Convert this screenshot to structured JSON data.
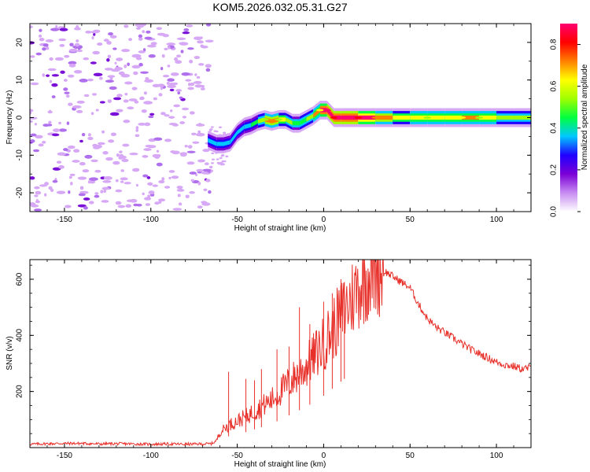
{
  "title": "KOM5.2026.032.05.31.G27",
  "chart_data": [
    {
      "type": "heatmap",
      "name": "spectrogram",
      "xlabel": "Height of straight line (km)",
      "ylabel": "Frequency (Hz)",
      "xlim": [
        -170,
        120
      ],
      "ylim": [
        -25,
        25
      ],
      "xticks": [
        -150,
        -100,
        -50,
        0,
        50,
        100
      ],
      "yticks": [
        -20,
        -10,
        0,
        10,
        20
      ],
      "noise_region_x": [
        -170,
        -65
      ],
      "signal_track": {
        "x": [
          -67,
          -62,
          -58,
          -54,
          -50,
          -46,
          -42,
          -38,
          -34,
          -30,
          -26,
          -22,
          -18,
          -14,
          -10,
          -6,
          -2,
          2,
          6,
          10,
          20,
          30,
          40,
          50,
          60,
          70,
          80,
          90,
          100,
          110,
          120
        ],
        "freq": [
          -6,
          -7,
          -7,
          -6.5,
          -4,
          -2.5,
          -2,
          -1,
          -0.5,
          -1,
          -0.5,
          -0.5,
          -1.5,
          -1.5,
          -0.5,
          0.5,
          2,
          2,
          0,
          0,
          0,
          0,
          0,
          0,
          0,
          0,
          0,
          0,
          0,
          0,
          0
        ],
        "amplitude": [
          0.25,
          0.3,
          0.35,
          0.25,
          0.3,
          0.35,
          0.3,
          0.4,
          0.55,
          0.7,
          0.55,
          0.45,
          0.4,
          0.35,
          0.45,
          0.5,
          0.65,
          0.95,
          0.8,
          0.9,
          0.85,
          0.7,
          0.5,
          0.5,
          0.55,
          0.5,
          0.6,
          0.55,
          0.5,
          0.45,
          0.4
        ]
      },
      "colorbar": {
        "label": "Normalized spectral amplitude",
        "range": [
          0,
          0.9
        ],
        "ticks": [
          "0.0",
          "0.2",
          "0.4",
          "0.6",
          "0.8"
        ],
        "colors": [
          "#ffffff",
          "#c78cf2",
          "#7b00d6",
          "#2000ff",
          "#00c8ff",
          "#00ff40",
          "#a0ff00",
          "#ffff00",
          "#ff8000",
          "#ff0000",
          "#ff0070"
        ]
      }
    },
    {
      "type": "line",
      "name": "snr",
      "xlabel": "Height of straight line (km)",
      "ylabel": "SNR (v/v)",
      "xlim": [
        -170,
        120
      ],
      "ylim": [
        0,
        670
      ],
      "xticks": [
        -150,
        -100,
        -50,
        0,
        50,
        100
      ],
      "yticks": [
        200,
        400,
        600
      ],
      "color": "#e8302a",
      "x": [
        -170,
        -160,
        -150,
        -140,
        -130,
        -120,
        -110,
        -100,
        -90,
        -80,
        -70,
        -65,
        -62,
        -60,
        -55,
        -50,
        -45,
        -40,
        -35,
        -30,
        -25,
        -20,
        -15,
        -10,
        -5,
        0,
        5,
        10,
        15,
        20,
        25,
        30,
        35,
        40,
        45,
        50,
        55,
        60,
        65,
        70,
        75,
        80,
        85,
        90,
        95,
        100,
        105,
        110,
        115,
        120
      ],
      "y": [
        12,
        14,
        15,
        15,
        13,
        14,
        13,
        12,
        13,
        12,
        13,
        14,
        25,
        55,
        80,
        95,
        110,
        130,
        150,
        170,
        200,
        230,
        260,
        290,
        330,
        370,
        420,
        470,
        520,
        570,
        610,
        640,
        630,
        610,
        590,
        570,
        510,
        460,
        430,
        410,
        390,
        370,
        350,
        335,
        320,
        305,
        295,
        290,
        280,
        285
      ],
      "spikes": [
        {
          "x": -55,
          "y": 270
        },
        {
          "x": -45,
          "y": 245
        },
        {
          "x": -40,
          "y": 240
        },
        {
          "x": -36,
          "y": 280
        },
        {
          "x": -27,
          "y": 350
        },
        {
          "x": -20,
          "y": 360
        },
        {
          "x": -14,
          "y": 500
        },
        {
          "x": -8,
          "y": 440
        },
        {
          "x": 0,
          "y": 520
        },
        {
          "x": 5,
          "y": 550
        },
        {
          "x": 10,
          "y": 600
        },
        {
          "x": 12,
          "y": 590
        }
      ]
    }
  ]
}
